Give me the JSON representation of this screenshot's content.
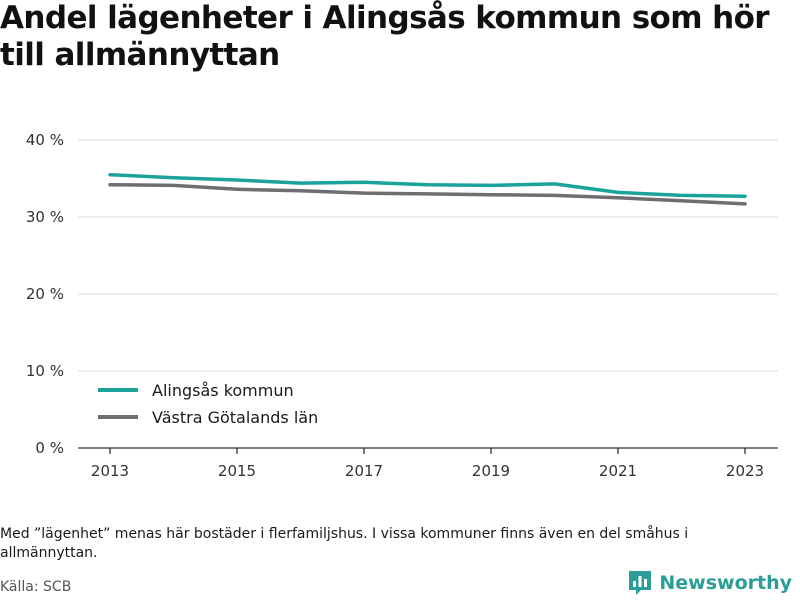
{
  "title": "Andel lägenheter i Alingsås kommun som hör till allmännyttan",
  "note": "Med ”lägenhet” menas här bostäder i flerfamiljshus. I vissa kommuner finns även en del småhus i allmännyttan.",
  "source": "Källa: SCB",
  "brand": {
    "name": "Newsworthy",
    "icon": "bar-chart-logo-icon",
    "color": "#2a9d96"
  },
  "chart_data": {
    "type": "line",
    "x": [
      2013,
      2014,
      2015,
      2016,
      2017,
      2018,
      2019,
      2020,
      2021,
      2022,
      2023
    ],
    "x_tick_labels": [
      "2013",
      "2015",
      "2017",
      "2019",
      "2021",
      "2023"
    ],
    "y_tick_labels": [
      "0 %",
      "10 %",
      "20 %",
      "30 %",
      "40 %"
    ],
    "y_ticks": [
      0,
      10,
      20,
      30,
      40
    ],
    "ylim": [
      0,
      40
    ],
    "grid": true,
    "legend_position": "bottom-left",
    "series": [
      {
        "name": "Alingsås kommun",
        "color": "#1aa39b",
        "values": [
          35.5,
          35.1,
          34.8,
          34.4,
          34.5,
          34.2,
          34.1,
          34.3,
          33.2,
          32.8,
          32.7
        ]
      },
      {
        "name": "Västra Götalands län",
        "color": "#6d6d72",
        "values": [
          34.2,
          34.1,
          33.6,
          33.4,
          33.1,
          33.0,
          32.9,
          32.8,
          32.5,
          32.1,
          31.7
        ]
      }
    ]
  }
}
